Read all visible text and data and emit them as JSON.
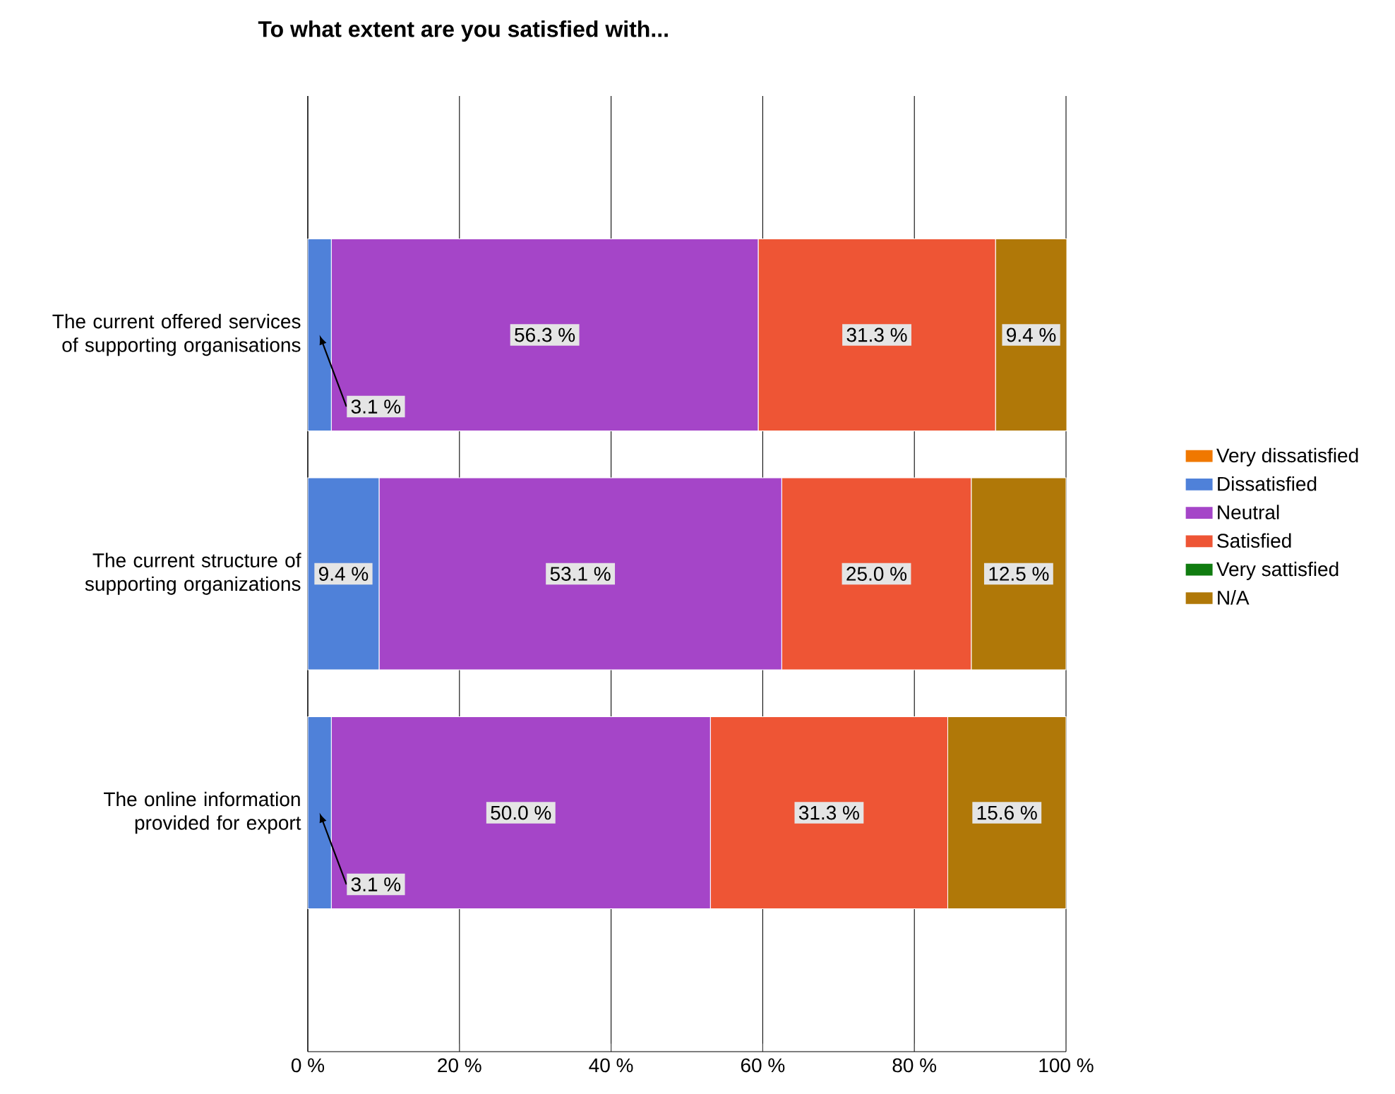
{
  "chart_data": {
    "type": "bar",
    "orientation": "horizontal",
    "stacked": true,
    "title": "To what extent are you satisfied with...",
    "categories": [
      "The current offered services of supporting organisations",
      "The current structure of supporting organizations",
      "The online information provided for export"
    ],
    "series": [
      {
        "name": "Very dissatisfied",
        "color": "#f07800",
        "values": [
          0,
          0,
          0
        ],
        "value_labels": [
          null,
          null,
          null
        ]
      },
      {
        "name": "Dissatisfied",
        "color": "#4f81d9",
        "values": [
          3.1,
          9.4,
          3.1
        ],
        "value_labels": [
          "3.1 %",
          "9.4 %",
          "3.1 %"
        ]
      },
      {
        "name": "Neutral",
        "color": "#a545c8",
        "values": [
          56.3,
          53.1,
          50.0
        ],
        "value_labels": [
          "56.3 %",
          "53.1 %",
          "50.0 %"
        ]
      },
      {
        "name": "Satisfied",
        "color": "#ee5535",
        "values": [
          31.3,
          25.0,
          31.3
        ],
        "value_labels": [
          "31.3 %",
          "25.0 %",
          "31.3 %"
        ]
      },
      {
        "name": "Very sattisfied",
        "color": "#107c10",
        "values": [
          0,
          0,
          0
        ],
        "value_labels": [
          null,
          null,
          null
        ]
      },
      {
        "name": "N/A",
        "color": "#b07808",
        "values": [
          9.4,
          12.5,
          15.6
        ],
        "value_labels": [
          "9.4 %",
          "12.5 %",
          "15.6 %"
        ]
      }
    ],
    "xlim": [
      0,
      100
    ],
    "xticks": [
      {
        "value": 0,
        "label": "0 %"
      },
      {
        "value": 20,
        "label": "20 %"
      },
      {
        "value": 40,
        "label": "40 %"
      },
      {
        "value": 60,
        "label": "60 %"
      },
      {
        "value": 80,
        "label": "80 %"
      },
      {
        "value": 100,
        "label": "100 %"
      }
    ],
    "grid": "x",
    "legend": "right"
  }
}
